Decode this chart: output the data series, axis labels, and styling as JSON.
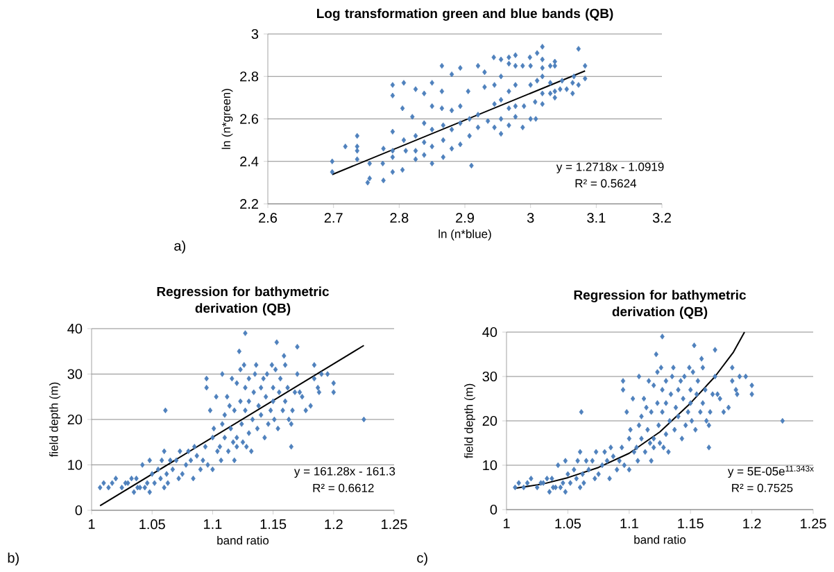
{
  "chart_data": [
    {
      "type": "scatter",
      "title": "Log transformation green and blue bands (QB)",
      "xlabel": "ln (n*blue)",
      "ylabel": "ln (n*green)",
      "xlim": [
        2.6,
        3.2
      ],
      "xticks": [
        2.6,
        2.7,
        2.8,
        2.9,
        3,
        3.1,
        3.2
      ],
      "ylim": [
        2.2,
        3
      ],
      "yticks": [
        2.2,
        2.4,
        2.6,
        2.8,
        3
      ],
      "grid": "y",
      "marker": "diamond",
      "annotations": [
        "y = 1.2718x - 1.0919",
        "R² = 0.5624",
        "a)"
      ],
      "series": [
        {
          "color": "#4f81bd",
          "x": [
            2.698,
            2.698,
            2.718,
            2.736,
            2.736,
            2.736,
            2.736,
            2.755,
            2.755,
            2.752,
            2.776,
            2.776,
            2.775,
            2.79,
            2.79,
            2.79,
            2.79,
            2.79,
            2.79,
            2.807,
            2.805,
            2.805,
            2.807,
            2.81,
            2.82,
            2.825,
            2.825,
            2.825,
            2.825,
            2.838,
            2.838,
            2.838,
            2.838,
            2.85,
            2.85,
            2.85,
            2.85,
            2.85,
            2.865,
            2.865,
            2.865,
            2.867,
            2.867,
            2.867,
            2.88,
            2.88,
            2.88,
            2.88,
            2.893,
            2.893,
            2.893,
            2.893,
            2.905,
            2.907,
            2.907,
            2.91,
            2.92,
            2.92,
            2.92,
            2.93,
            2.93,
            2.935,
            2.944,
            2.945,
            2.945,
            2.945,
            2.955,
            2.955,
            2.955,
            2.955,
            2.955,
            2.967,
            2.967,
            2.967,
            2.967,
            2.967,
            2.977,
            2.977,
            2.977,
            2.977,
            2.977,
            2.988,
            2.988,
            2.99,
            2.999,
            3.0,
            3.0,
            3.0,
            3.008,
            3.007,
            3.01,
            3.01,
            3.018,
            3.018,
            3.018,
            3.018,
            3.018,
            3.018,
            3.03,
            3.03,
            3.03,
            3.037,
            3.037,
            3.037,
            3.037,
            3.045,
            3.048,
            3.055,
            3.064,
            3.064,
            3.066,
            3.073,
            3.073,
            3.083,
            3.083
          ],
          "values": [
            2.4,
            2.35,
            2.47,
            2.52,
            2.47,
            2.45,
            2.41,
            2.39,
            2.32,
            2.3,
            2.31,
            2.46,
            2.39,
            2.35,
            2.54,
            2.71,
            2.76,
            2.45,
            2.42,
            2.77,
            2.65,
            2.36,
            2.5,
            2.45,
            2.61,
            2.74,
            2.52,
            2.45,
            2.41,
            2.72,
            2.58,
            2.49,
            2.43,
            2.77,
            2.66,
            2.55,
            2.47,
            2.39,
            2.85,
            2.73,
            2.65,
            2.57,
            2.5,
            2.42,
            2.81,
            2.64,
            2.55,
            2.46,
            2.84,
            2.66,
            2.58,
            2.48,
            2.73,
            2.6,
            2.52,
            2.38,
            2.85,
            2.62,
            2.56,
            2.82,
            2.75,
            2.59,
            2.89,
            2.76,
            2.67,
            2.56,
            2.88,
            2.8,
            2.69,
            2.6,
            2.53,
            2.89,
            2.86,
            2.73,
            2.65,
            2.57,
            2.9,
            2.85,
            2.76,
            2.66,
            2.61,
            2.85,
            2.56,
            2.66,
            2.89,
            2.85,
            2.76,
            2.6,
            2.6,
            2.68,
            2.91,
            2.78,
            2.94,
            2.88,
            2.84,
            2.8,
            2.72,
            2.67,
            2.85,
            2.77,
            2.72,
            2.87,
            2.85,
            2.73,
            2.7,
            2.74,
            2.78,
            2.74,
            2.72,
            2.77,
            2.8,
            2.93,
            2.76,
            2.85,
            2.79
          ]
        },
        {
          "type": "line",
          "marker": "none",
          "color": "#000000",
          "x": [
            2.698,
            3.083
          ],
          "values": [
            2.338,
            2.826
          ]
        }
      ]
    },
    {
      "type": "scatter",
      "title": "Regression for bathymetric derivation (QB)",
      "xlabel": "band ratio",
      "ylabel": "field depth (m)",
      "xlim": [
        1,
        1.25
      ],
      "xticks": [
        1,
        1.05,
        1.1,
        1.15,
        1.2,
        1.25
      ],
      "ylim": [
        0,
        40
      ],
      "yticks": [
        0,
        10,
        20,
        30,
        40
      ],
      "grid": "y",
      "marker": "diamond",
      "annotations": [
        "y = 161.28x - 161.3",
        "R² = 0.6612",
        "b)"
      ],
      "series": [
        {
          "color": "#4f81bd",
          "x": [
            1.007,
            1.01,
            1.014,
            1.017,
            1.02,
            1.025,
            1.028,
            1.03,
            1.033,
            1.035,
            1.037,
            1.038,
            1.04,
            1.042,
            1.044,
            1.046,
            1.048,
            1.048,
            1.05,
            1.052,
            1.055,
            1.057,
            1.058,
            1.06,
            1.06,
            1.061,
            1.062,
            1.063,
            1.065,
            1.067,
            1.07,
            1.072,
            1.073,
            1.075,
            1.078,
            1.08,
            1.082,
            1.084,
            1.085,
            1.087,
            1.09,
            1.092,
            1.094,
            1.095,
            1.095,
            1.096,
            1.098,
            1.1,
            1.1,
            1.101,
            1.103,
            1.104,
            1.106,
            1.107,
            1.108,
            1.108,
            1.11,
            1.11,
            1.112,
            1.113,
            1.114,
            1.115,
            1.116,
            1.117,
            1.118,
            1.118,
            1.12,
            1.12,
            1.12,
            1.122,
            1.123,
            1.123,
            1.124,
            1.125,
            1.126,
            1.127,
            1.127,
            1.127,
            1.128,
            1.13,
            1.13,
            1.13,
            1.132,
            1.133,
            1.134,
            1.135,
            1.136,
            1.137,
            1.138,
            1.14,
            1.14,
            1.142,
            1.143,
            1.144,
            1.145,
            1.146,
            1.148,
            1.149,
            1.15,
            1.15,
            1.151,
            1.152,
            1.153,
            1.154,
            1.155,
            1.156,
            1.158,
            1.159,
            1.16,
            1.16,
            1.162,
            1.163,
            1.165,
            1.165,
            1.166,
            1.168,
            1.17,
            1.17,
            1.172,
            1.174,
            1.177,
            1.181,
            1.184,
            1.184,
            1.187,
            1.188,
            1.19,
            1.195,
            1.2,
            1.2,
            1.225
          ],
          "values": [
            5,
            6,
            5,
            6,
            7,
            5,
            6,
            6,
            7,
            4,
            7,
            5,
            5,
            10,
            5,
            6,
            11,
            4,
            8,
            6,
            9,
            7,
            11,
            13,
            5,
            22,
            8,
            6,
            11,
            9,
            11,
            7,
            13,
            8,
            10,
            13,
            11,
            7,
            14,
            12,
            9,
            11,
            14,
            27,
            29,
            10,
            22,
            9,
            16,
            18,
            25,
            13,
            14,
            11,
            19,
            30,
            21,
            16,
            25,
            13,
            23,
            18,
            29,
            15,
            11,
            22,
            28,
            16,
            14,
            35,
            31,
            24,
            19,
            15,
            32,
            39,
            27,
            22,
            14,
            29,
            24,
            17,
            13,
            20,
            26,
            30,
            32,
            18,
            23,
            27,
            21,
            29,
            16,
            25,
            30,
            19,
            22,
            32,
            27,
            24,
            20,
            31,
            37,
            18,
            26,
            29,
            22,
            34,
            32,
            24,
            27,
            20,
            19,
            14,
            22,
            26,
            36,
            30,
            26,
            25,
            22,
            23,
            32,
            29,
            27,
            26,
            30,
            30,
            28,
            26,
            20
          ]
        },
        {
          "type": "line",
          "marker": "none",
          "color": "#000000",
          "x": [
            1.007,
            1.225
          ],
          "values": [
            1,
            36.3
          ]
        }
      ]
    },
    {
      "type": "scatter",
      "title": "Regression for bathymetric derivation (QB)",
      "xlabel": "band ratio",
      "ylabel": "field depth (m)",
      "xlim": [
        1,
        1.25
      ],
      "xticks": [
        1,
        1.05,
        1.1,
        1.15,
        1.2,
        1.25
      ],
      "ylim": [
        0,
        40
      ],
      "yticks": [
        0,
        10,
        20,
        30,
        40
      ],
      "grid": "y",
      "marker": "diamond",
      "annotations": [
        "y = 5E-05e$^{11.343x}$",
        "R² = 0.7525",
        "c)"
      ],
      "series": [
        {
          "color": "#4f81bd",
          "x": [
            1.007,
            1.01,
            1.014,
            1.017,
            1.02,
            1.025,
            1.028,
            1.03,
            1.033,
            1.035,
            1.037,
            1.038,
            1.04,
            1.042,
            1.044,
            1.046,
            1.048,
            1.048,
            1.05,
            1.052,
            1.055,
            1.057,
            1.058,
            1.06,
            1.06,
            1.061,
            1.062,
            1.063,
            1.065,
            1.067,
            1.07,
            1.072,
            1.073,
            1.075,
            1.078,
            1.08,
            1.082,
            1.084,
            1.085,
            1.087,
            1.09,
            1.092,
            1.094,
            1.095,
            1.095,
            1.096,
            1.098,
            1.1,
            1.1,
            1.101,
            1.103,
            1.104,
            1.106,
            1.107,
            1.108,
            1.108,
            1.11,
            1.11,
            1.112,
            1.113,
            1.114,
            1.115,
            1.116,
            1.117,
            1.118,
            1.118,
            1.12,
            1.12,
            1.12,
            1.122,
            1.123,
            1.123,
            1.124,
            1.125,
            1.126,
            1.127,
            1.127,
            1.127,
            1.128,
            1.13,
            1.13,
            1.13,
            1.132,
            1.133,
            1.134,
            1.135,
            1.136,
            1.137,
            1.138,
            1.14,
            1.14,
            1.142,
            1.143,
            1.144,
            1.145,
            1.146,
            1.148,
            1.149,
            1.15,
            1.15,
            1.151,
            1.152,
            1.153,
            1.154,
            1.155,
            1.156,
            1.158,
            1.159,
            1.16,
            1.16,
            1.162,
            1.163,
            1.165,
            1.165,
            1.166,
            1.168,
            1.17,
            1.17,
            1.172,
            1.174,
            1.177,
            1.181,
            1.184,
            1.184,
            1.187,
            1.188,
            1.19,
            1.195,
            1.2,
            1.2,
            1.225
          ],
          "values": [
            5,
            6,
            5,
            6,
            7,
            5,
            6,
            6,
            7,
            4,
            7,
            5,
            5,
            10,
            5,
            6,
            11,
            4,
            8,
            6,
            9,
            7,
            11,
            13,
            5,
            22,
            8,
            6,
            11,
            9,
            11,
            7,
            13,
            8,
            10,
            13,
            11,
            7,
            14,
            12,
            9,
            11,
            14,
            27,
            29,
            10,
            22,
            9,
            16,
            18,
            25,
            13,
            14,
            11,
            19,
            30,
            21,
            16,
            25,
            13,
            23,
            18,
            29,
            15,
            11,
            22,
            28,
            16,
            14,
            35,
            31,
            24,
            19,
            15,
            32,
            39,
            27,
            22,
            14,
            29,
            24,
            17,
            13,
            20,
            26,
            30,
            32,
            18,
            23,
            27,
            21,
            29,
            16,
            25,
            30,
            19,
            22,
            32,
            27,
            24,
            20,
            31,
            37,
            18,
            26,
            29,
            22,
            34,
            32,
            24,
            27,
            20,
            19,
            14,
            22,
            26,
            36,
            30,
            26,
            25,
            22,
            23,
            32,
            29,
            27,
            26,
            30,
            30,
            28,
            26,
            20
          ]
        },
        {
          "type": "line",
          "marker": "none",
          "color": "#000000",
          "x": [
            1.007,
            1.03,
            1.05,
            1.075,
            1.1,
            1.125,
            1.15,
            1.17,
            1.185,
            1.194
          ],
          "values": [
            4.8,
            5.8,
            7.2,
            9.5,
            12.7,
            17.5,
            24,
            30,
            35.5,
            40
          ]
        }
      ]
    }
  ]
}
